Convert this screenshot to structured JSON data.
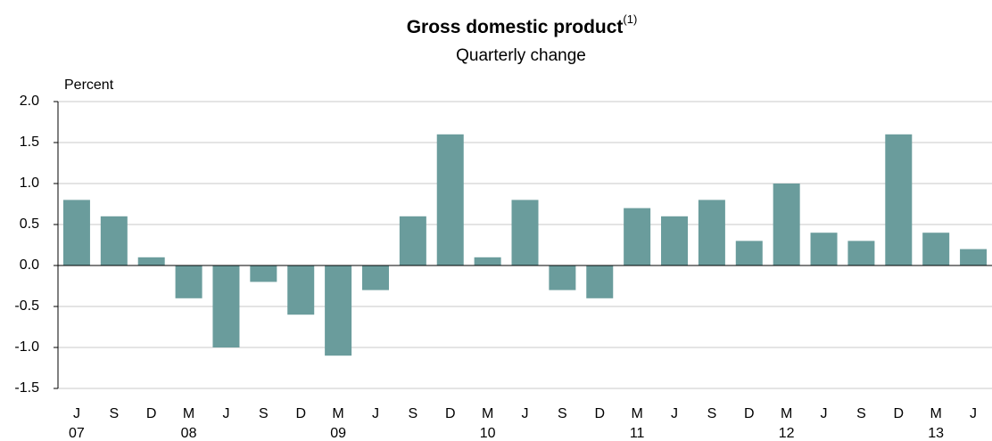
{
  "chart_data": {
    "type": "bar",
    "title": "Gross domestic product",
    "title_note": "(1)",
    "subtitle": "Quarterly  change",
    "y_axis_label": "Percent",
    "categories": [
      "J",
      "S",
      "D",
      "M",
      "J",
      "S",
      "D",
      "M",
      "J",
      "S",
      "D",
      "M",
      "J",
      "S",
      "D",
      "M",
      "J",
      "S",
      "D",
      "M",
      "J",
      "S",
      "D",
      "M",
      "J"
    ],
    "year_labels": [
      "07",
      null,
      null,
      "08",
      null,
      null,
      null,
      "09",
      null,
      null,
      null,
      "10",
      null,
      null,
      null,
      "11",
      null,
      null,
      null,
      "12",
      null,
      null,
      null,
      "13",
      null
    ],
    "values": [
      0.8,
      0.6,
      0.1,
      -0.4,
      -1.0,
      -0.2,
      -0.6,
      -1.1,
      -0.3,
      0.6,
      1.6,
      0.1,
      0.8,
      -0.3,
      -0.4,
      0.7,
      0.6,
      0.8,
      0.3,
      1.0,
      0.4,
      0.3,
      1.6,
      0.4,
      0.2
    ],
    "color": "#6a9c9c",
    "ylim": [
      -1.5,
      2.0
    ],
    "yticks": [
      {
        "value": -1.5,
        "label": "-1.5"
      },
      {
        "value": -1.0,
        "label": "-1.0"
      },
      {
        "value": -0.5,
        "label": "-0.5"
      },
      {
        "value": 0,
        "label": "0.0"
      },
      {
        "value": 0.5,
        "label": "0.5"
      },
      {
        "value": 1.0,
        "label": "1.0"
      },
      {
        "value": 1.5,
        "label": "1.5"
      },
      {
        "value": 2.0,
        "label": "2.0"
      }
    ],
    "grid": true
  }
}
